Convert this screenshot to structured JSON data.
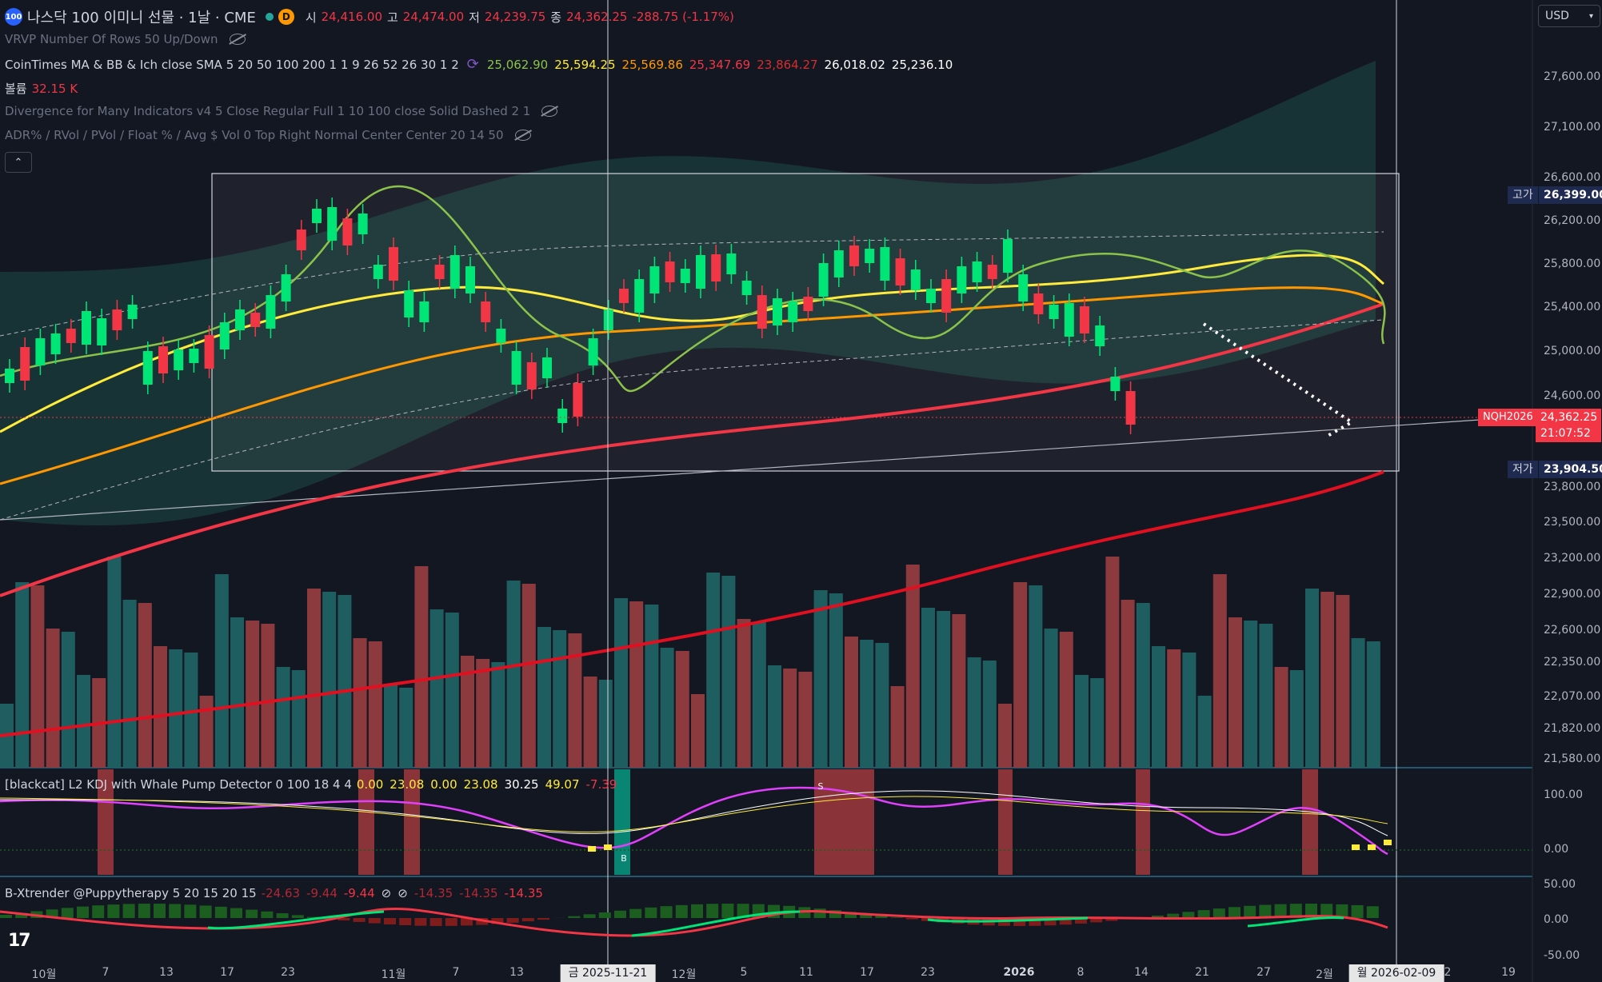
{
  "header": {
    "symbol_title": "나스닥 100 이미니 선물 · 1날 · CME",
    "logo_text": "100",
    "interval_badge": "D",
    "open_label": "시",
    "open": "24,416.00",
    "high_label": "고",
    "high": "24,474.00",
    "low_label": "저",
    "low": "24,239.75",
    "close_label": "종",
    "close": "24,362.25",
    "change": "-288.75 (-1.17%)"
  },
  "indicators": {
    "vrvp": "VRVP Number Of Rows 50 Up/Down",
    "ma_name": "CoinTimes MA & BB & Ich close SMA 5 20 50 100 200 1 1 9 26 52 26 30 1 2",
    "ma_values": [
      {
        "v": "25,062.90",
        "color": "#8bc34a"
      },
      {
        "v": "25,594.25",
        "color": "#ffeb3b"
      },
      {
        "v": "25,569.86",
        "color": "#ff9800"
      },
      {
        "v": "25,347.69",
        "color": "#f23645"
      },
      {
        "v": "23,864.27",
        "color": "#d32f2f"
      },
      {
        "v": "26,018.02",
        "color": "#ffffff"
      },
      {
        "v": "25,236.10",
        "color": "#ffffff"
      }
    ],
    "volume_label": "볼륨",
    "volume_value": "32.15 K",
    "divergence": "Divergence for Many Indicators v4 5 Close Regular Full 1 10 100 close Solid Dashed 2 1",
    "adr": "ADR% / RVol / PVol / Float % / Avg $ Vol 0 Top Right Normal Center Center 20 14 50"
  },
  "kdj": {
    "name": "[blackcat] L2 KDJ with Whale Pump Detector 0 100 18 4 4",
    "values": [
      {
        "v": "0.00",
        "color": "#ffeb3b"
      },
      {
        "v": "23.08",
        "color": "#ffeb3b"
      },
      {
        "v": "0.00",
        "color": "#ffeb3b"
      },
      {
        "v": "23.08",
        "color": "#ffeb3b"
      },
      {
        "v": "30.25",
        "color": "#ffffff"
      },
      {
        "v": "49.07",
        "color": "#ffeb3b"
      },
      {
        "v": "-7.39",
        "color": "#f23645"
      }
    ],
    "axis": [
      "100.00",
      "0.00"
    ],
    "marker_b": "B",
    "marker_s": "S"
  },
  "xtrender": {
    "name": "B-Xtrender @Puppytherapy 5 20 15 20 15",
    "values": [
      {
        "v": "-24.63",
        "color": "#b22833"
      },
      {
        "v": "-9.44",
        "color": "#b22833"
      },
      {
        "v": "-9.44",
        "color": "#f23645"
      },
      {
        "v": "⊘",
        "color": "#d1d4dc"
      },
      {
        "v": "⊘",
        "color": "#d1d4dc"
      },
      {
        "v": "-14.35",
        "color": "#b22833"
      },
      {
        "v": "-14.35",
        "color": "#b22833"
      },
      {
        "v": "-14.35",
        "color": "#f23645"
      }
    ],
    "axis": [
      "50.00",
      "0.00",
      "-50.00"
    ]
  },
  "price_axis": {
    "currency": "USD",
    "ticks": [
      "27,600.00",
      "27,100.00",
      "26,600.00",
      "26,200.00",
      "25,800.00",
      "25,400.00",
      "25,000.00",
      "24,600.00",
      "23,800.00",
      "23,500.00",
      "23,200.00",
      "22,900.00",
      "22,600.00",
      "22,350.00",
      "22,070.00",
      "21,820.00",
      "21,580.00"
    ],
    "high_tag": "고가",
    "high_value": "26,399.00",
    "low_tag": "저가",
    "low_value": "23,904.50",
    "symbol_tag": "NQH2026",
    "last_price": "24,362.25",
    "countdown": "21:07:52"
  },
  "time_axis": {
    "labels": [
      "10월",
      "7",
      "13",
      "17",
      "23",
      "11월",
      "7",
      "13",
      "12월",
      "5",
      "11",
      "17",
      "23",
      "2026",
      "8",
      "14",
      "21",
      "27",
      "2월",
      "2",
      "19"
    ],
    "crosshair_label": "금 2025-11-21",
    "right_label": "월 2026-02-09"
  },
  "colors": {
    "up": "#00e676",
    "down": "#f23645",
    "bg": "#131722"
  }
}
